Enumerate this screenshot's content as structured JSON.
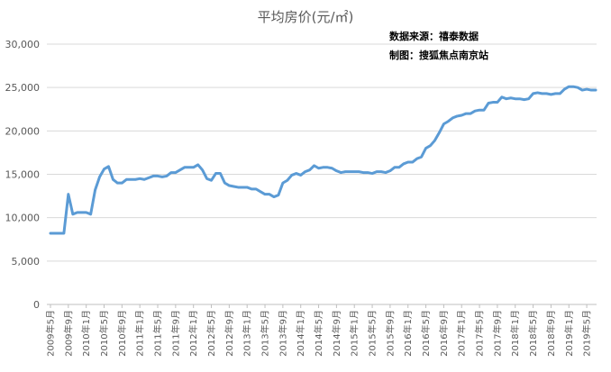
{
  "chart_data": {
    "type": "line",
    "title": "平均房价(元/㎡)",
    "annotations": [
      "数据来源：禧泰数据",
      "制图：搜狐焦点南京站"
    ],
    "xlabel": "",
    "ylabel": "",
    "ylim": [
      0,
      30000
    ],
    "yticks": [
      0,
      5000,
      10000,
      15000,
      20000,
      25000,
      30000
    ],
    "ytick_labels": [
      "0",
      "5,000",
      "10,000",
      "15,000",
      "20,000",
      "25,000",
      "30,000"
    ],
    "xtick_labels": [
      "2009年5月",
      "2009年9月",
      "2010年1月",
      "2010年5月",
      "2010年9月",
      "2011年1月",
      "2011年5月",
      "2011年9月",
      "2012年1月",
      "2012年5月",
      "2012年9月",
      "2013年1月",
      "2013年5月",
      "2013年9月",
      "2014年1月",
      "2014年5月",
      "2014年9月",
      "2015年1月",
      "2015年5月",
      "2015年9月",
      "2016年1月",
      "2016年5月",
      "2016年9月",
      "2017年1月",
      "2017年5月",
      "2017年9月",
      "2018年1月",
      "2018年5月",
      "2018年9月",
      "2019年1月",
      "2019年5月"
    ],
    "grid": true,
    "legend": "none",
    "series_color": "#5b9bd5",
    "series": [
      {
        "start": "2009-05",
        "values": [
          8200,
          8200,
          8200,
          8200,
          12700,
          10400,
          10600,
          10600,
          10600,
          10400,
          13200,
          14700,
          15600,
          15900,
          14400,
          14000,
          14000,
          14400,
          14400,
          14400,
          14500,
          14400,
          14600,
          14800,
          14800,
          14700,
          14800,
          15200,
          15200,
          15500,
          15800,
          15800,
          15800,
          16100,
          15500,
          14500,
          14300,
          15100,
          15100,
          14000,
          13700,
          13600,
          13500,
          13500,
          13500,
          13300,
          13300,
          13000,
          12700,
          12700,
          12400,
          12600,
          14000,
          14300,
          14900,
          15100,
          14900,
          15300,
          15500,
          16000,
          15700,
          15800,
          15800,
          15700,
          15400,
          15200,
          15300,
          15300,
          15300,
          15300,
          15200,
          15200,
          15100,
          15300,
          15300,
          15200,
          15400,
          15800,
          15800,
          16200,
          16400,
          16400,
          16800,
          17000,
          18000,
          18300,
          18900,
          19800,
          20800,
          21100,
          21500,
          21700,
          21800,
          22000,
          22000,
          22300,
          22400,
          22400,
          23200,
          23300,
          23300,
          23900,
          23700,
          23800,
          23700,
          23700,
          23600,
          23700,
          24300,
          24400,
          24300,
          24300,
          24200,
          24300,
          24300,
          24800,
          25100,
          25100,
          25000,
          24700,
          24800,
          24700,
          24700
        ]
      }
    ]
  }
}
